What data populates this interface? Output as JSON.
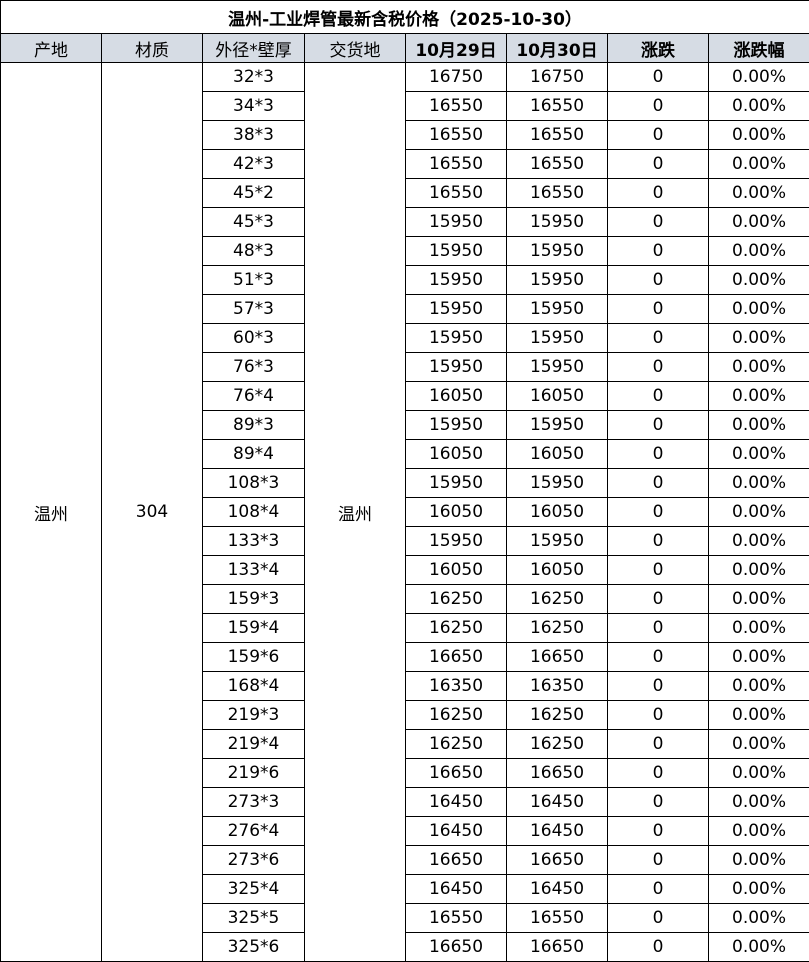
{
  "title": "温州-工业焊管最新含税价格（2025-10-30）",
  "headers": [
    "产地",
    "材质",
    "外径*壁厚",
    "交货地",
    "10月29日",
    "10月30日",
    "涨跌",
    "涨跌幅"
  ],
  "origin": "温州",
  "material": "304",
  "delivery": "温州",
  "header_bg": "#d6dce4",
  "rows": [
    {
      "spec": "32*3",
      "d1": "16750",
      "d2": "16750",
      "chg": "0",
      "pct": "0.00%"
    },
    {
      "spec": "34*3",
      "d1": "16550",
      "d2": "16550",
      "chg": "0",
      "pct": "0.00%"
    },
    {
      "spec": "38*3",
      "d1": "16550",
      "d2": "16550",
      "chg": "0",
      "pct": "0.00%"
    },
    {
      "spec": "42*3",
      "d1": "16550",
      "d2": "16550",
      "chg": "0",
      "pct": "0.00%"
    },
    {
      "spec": "45*2",
      "d1": "16550",
      "d2": "16550",
      "chg": "0",
      "pct": "0.00%"
    },
    {
      "spec": "45*3",
      "d1": "15950",
      "d2": "15950",
      "chg": "0",
      "pct": "0.00%"
    },
    {
      "spec": "48*3",
      "d1": "15950",
      "d2": "15950",
      "chg": "0",
      "pct": "0.00%"
    },
    {
      "spec": "51*3",
      "d1": "15950",
      "d2": "15950",
      "chg": "0",
      "pct": "0.00%"
    },
    {
      "spec": "57*3",
      "d1": "15950",
      "d2": "15950",
      "chg": "0",
      "pct": "0.00%"
    },
    {
      "spec": "60*3",
      "d1": "15950",
      "d2": "15950",
      "chg": "0",
      "pct": "0.00%"
    },
    {
      "spec": "76*3",
      "d1": "15950",
      "d2": "15950",
      "chg": "0",
      "pct": "0.00%"
    },
    {
      "spec": "76*4",
      "d1": "16050",
      "d2": "16050",
      "chg": "0",
      "pct": "0.00%"
    },
    {
      "spec": "89*3",
      "d1": "15950",
      "d2": "15950",
      "chg": "0",
      "pct": "0.00%"
    },
    {
      "spec": "89*4",
      "d1": "16050",
      "d2": "16050",
      "chg": "0",
      "pct": "0.00%"
    },
    {
      "spec": "108*3",
      "d1": "15950",
      "d2": "15950",
      "chg": "0",
      "pct": "0.00%"
    },
    {
      "spec": "108*4",
      "d1": "16050",
      "d2": "16050",
      "chg": "0",
      "pct": "0.00%"
    },
    {
      "spec": "133*3",
      "d1": "15950",
      "d2": "15950",
      "chg": "0",
      "pct": "0.00%"
    },
    {
      "spec": "133*4",
      "d1": "16050",
      "d2": "16050",
      "chg": "0",
      "pct": "0.00%"
    },
    {
      "spec": "159*3",
      "d1": "16250",
      "d2": "16250",
      "chg": "0",
      "pct": "0.00%"
    },
    {
      "spec": "159*4",
      "d1": "16250",
      "d2": "16250",
      "chg": "0",
      "pct": "0.00%"
    },
    {
      "spec": "159*6",
      "d1": "16650",
      "d2": "16650",
      "chg": "0",
      "pct": "0.00%"
    },
    {
      "spec": "168*4",
      "d1": "16350",
      "d2": "16350",
      "chg": "0",
      "pct": "0.00%"
    },
    {
      "spec": "219*3",
      "d1": "16250",
      "d2": "16250",
      "chg": "0",
      "pct": "0.00%"
    },
    {
      "spec": "219*4",
      "d1": "16250",
      "d2": "16250",
      "chg": "0",
      "pct": "0.00%"
    },
    {
      "spec": "219*6",
      "d1": "16650",
      "d2": "16650",
      "chg": "0",
      "pct": "0.00%"
    },
    {
      "spec": "273*3",
      "d1": "16450",
      "d2": "16450",
      "chg": "0",
      "pct": "0.00%"
    },
    {
      "spec": "276*4",
      "d1": "16450",
      "d2": "16450",
      "chg": "0",
      "pct": "0.00%"
    },
    {
      "spec": "273*6",
      "d1": "16650",
      "d2": "16650",
      "chg": "0",
      "pct": "0.00%"
    },
    {
      "spec": "325*4",
      "d1": "16450",
      "d2": "16450",
      "chg": "0",
      "pct": "0.00%"
    },
    {
      "spec": "325*5",
      "d1": "16550",
      "d2": "16550",
      "chg": "0",
      "pct": "0.00%"
    },
    {
      "spec": "325*6",
      "d1": "16650",
      "d2": "16650",
      "chg": "0",
      "pct": "0.00%"
    }
  ]
}
